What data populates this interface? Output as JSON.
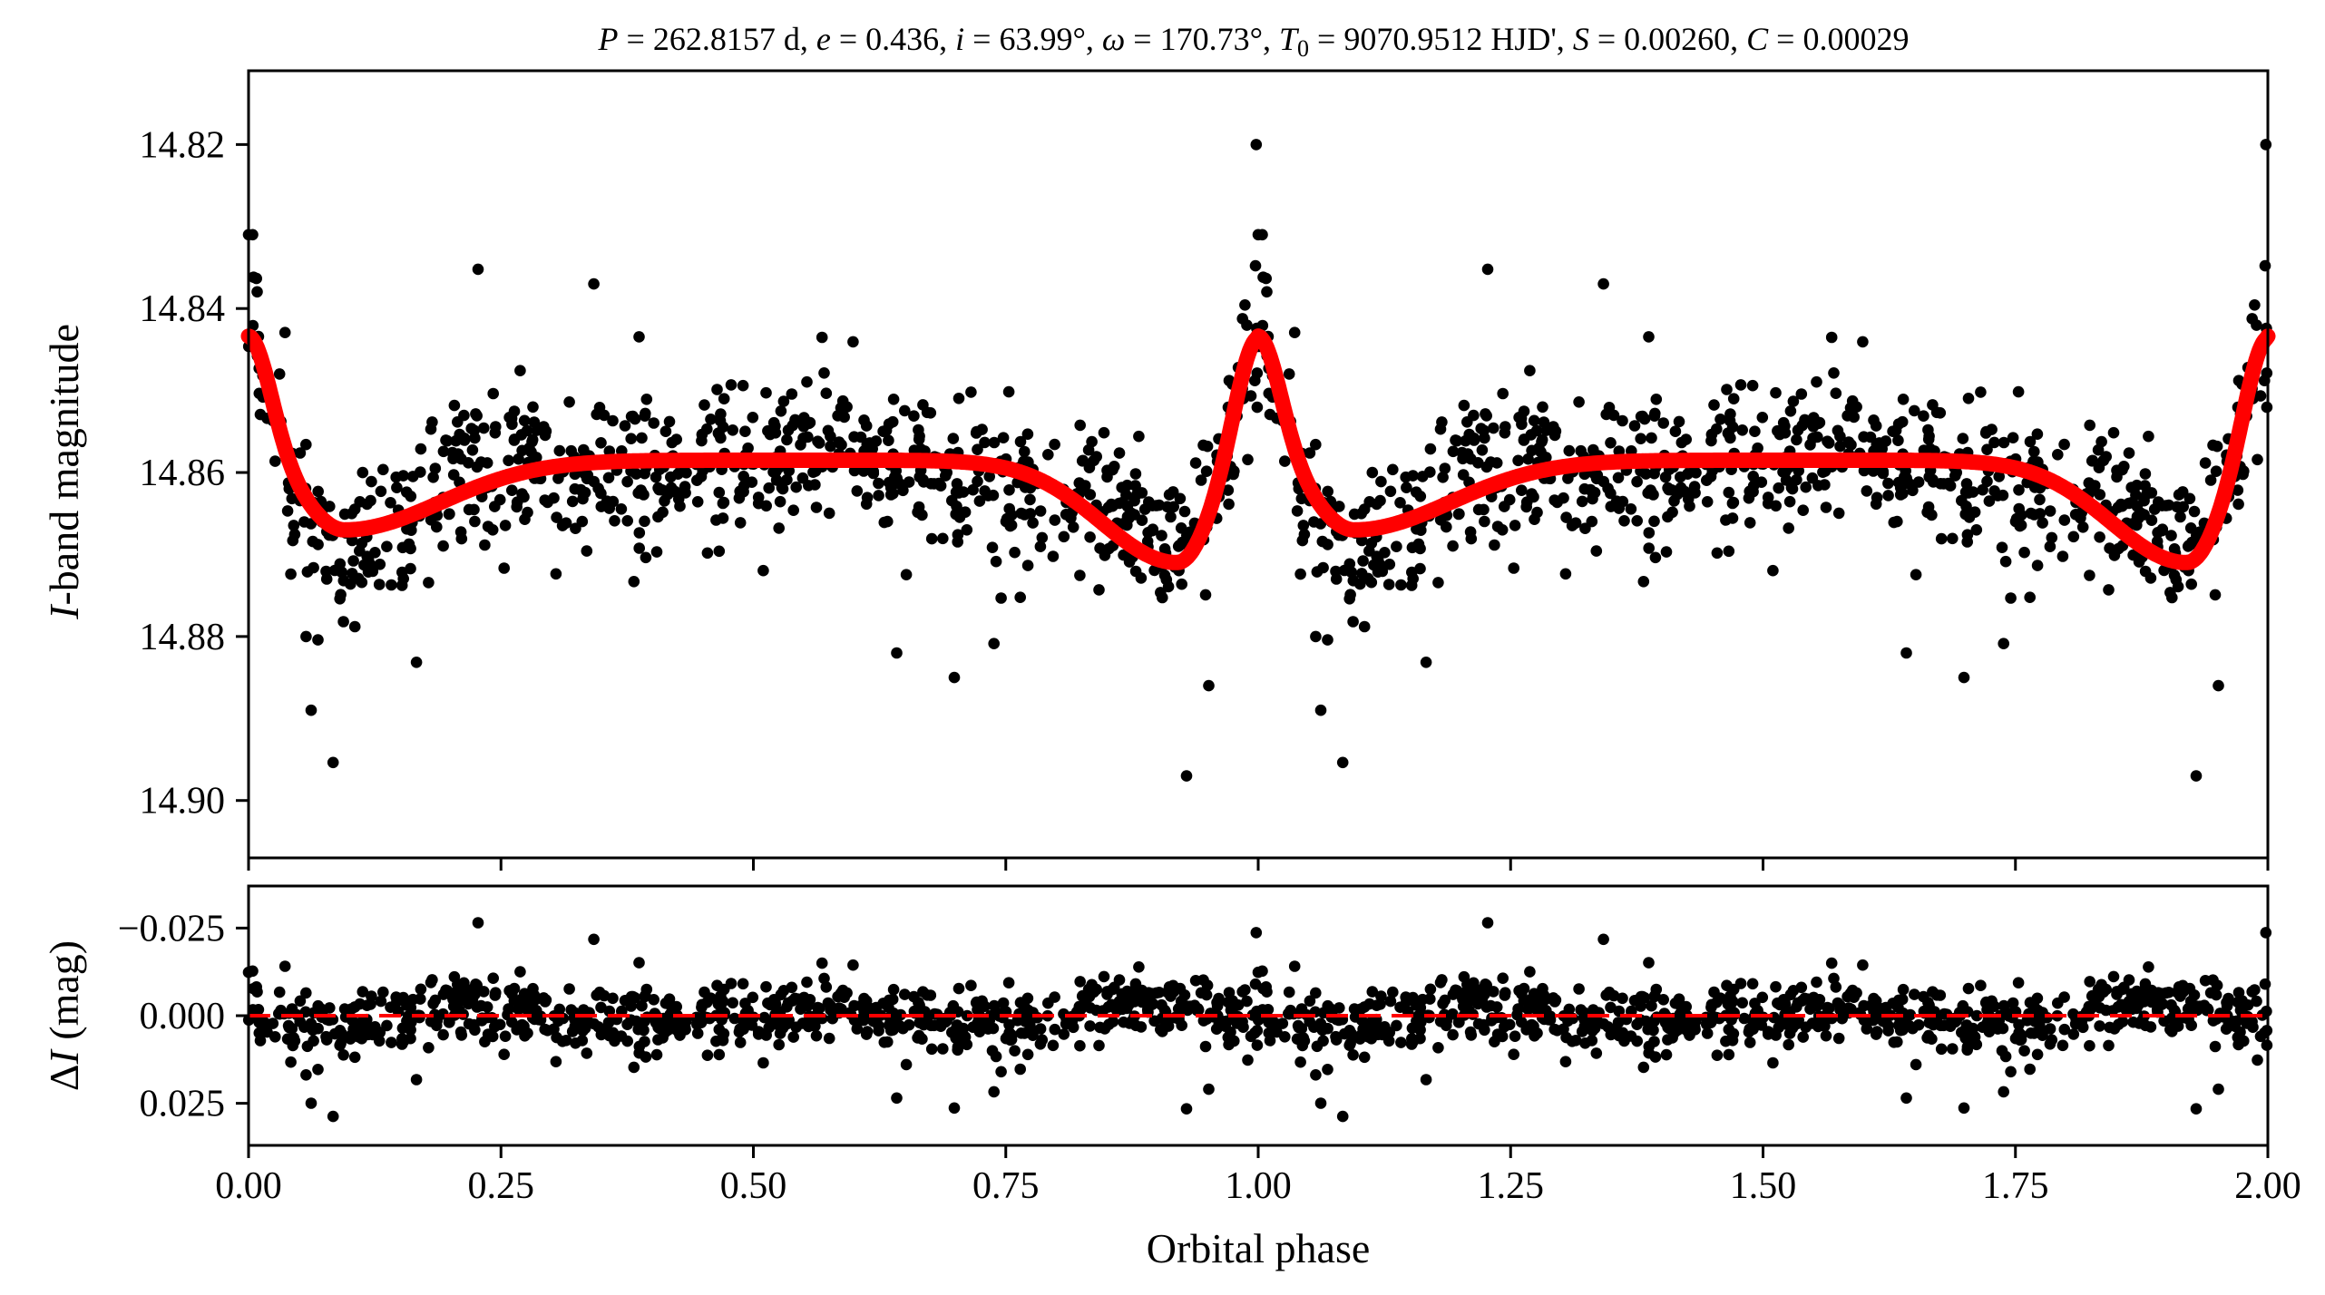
{
  "chart_data": [
    {
      "type": "scatter",
      "title": "P = 262.8157 d, e = 0.436, i = 63.99°, ω = 170.73°, T0 = 9070.9512 HJD', S = 0.00260, C = 0.00029",
      "title_parts": {
        "p_sym": "P",
        "p_val": " = 262.8157 d, ",
        "e_sym": "e",
        "e_val": " = 0.436, ",
        "i_sym": "i",
        "i_val": " = 63.99°, ",
        "w_sym": "ω",
        "w_val": " = 170.73°, ",
        "t_sym": "T",
        "t_sub": "0",
        "t_val": " = 9070.9512 HJD', ",
        "s_sym": "S",
        "s_val": " = 0.00260, ",
        "c_sym": "C",
        "c_val": " = 0.00029"
      },
      "ylabel_italic": "I",
      "ylabel_rest": "-band magnitude",
      "xlim": [
        0.0,
        2.0
      ],
      "ylim": [
        14.907,
        14.811
      ],
      "y_inverted": true,
      "yticks": [
        14.82,
        14.84,
        14.86,
        14.88,
        14.9
      ],
      "ytick_labels": [
        "14.82",
        "14.84",
        "14.86",
        "14.88",
        "14.90"
      ],
      "series": [
        {
          "kind": "points",
          "color": "#000000",
          "n_points_per_cycle": 780,
          "notable_points": [
            {
              "x": 0.0,
              "y": 14.831
            },
            {
              "x": 0.062,
              "y": 14.889
            },
            {
              "x": 0.057,
              "y": 14.88
            },
            {
              "x": 0.342,
              "y": 14.837
            },
            {
              "x": 0.929,
              "y": 14.897
            },
            {
              "x": 0.951,
              "y": 14.886
            },
            {
              "x": 0.998,
              "y": 14.82
            },
            {
              "x": 1.004,
              "y": 14.831
            },
            {
              "x": 0.699,
              "y": 14.885
            },
            {
              "x": 0.642,
              "y": 14.882
            }
          ]
        },
        {
          "kind": "model",
          "color": "#ff0000",
          "baseline": 14.8585,
          "features": [
            {
              "type": "peak",
              "phase": 0.0,
              "depth": -0.0155
            },
            {
              "type": "dip",
              "phase": 0.095,
              "depth": 0.0085
            },
            {
              "type": "dip",
              "phase": 0.92,
              "depth": 0.0125
            }
          ]
        }
      ]
    },
    {
      "type": "scatter",
      "xlabel": "Orbital phase",
      "ylabel_delta": "Δ",
      "ylabel_italic": "I",
      "ylabel_rest": " (mag)",
      "xlim": [
        0.0,
        2.0
      ],
      "ylim": [
        0.037,
        -0.037
      ],
      "y_inverted": true,
      "xticks": [
        0.0,
        0.25,
        0.5,
        0.75,
        1.0,
        1.25,
        1.5,
        1.75,
        2.0
      ],
      "xtick_labels": [
        "0.00",
        "0.25",
        "0.50",
        "0.75",
        "1.00",
        "1.25",
        "1.50",
        "1.75",
        "2.00"
      ],
      "yticks": [
        -0.025,
        0.0,
        0.025
      ],
      "ytick_labels": [
        "−0.025",
        "0.000",
        "0.025"
      ],
      "reference_line": {
        "y": 0.0,
        "color": "#ff0000",
        "style": "dashed"
      },
      "series": [
        {
          "kind": "residuals",
          "color": "#000000",
          "scatter_sigma_mag": 0.0065
        }
      ]
    }
  ]
}
